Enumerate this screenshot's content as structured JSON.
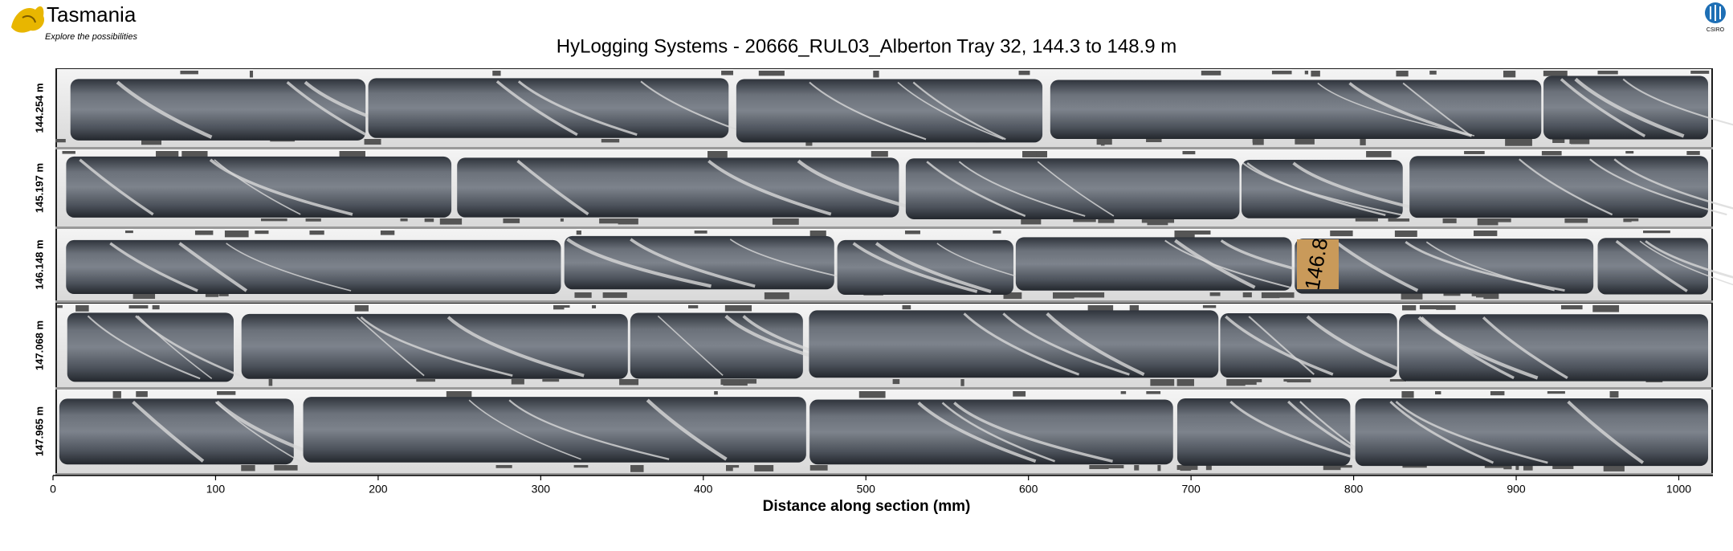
{
  "logo": {
    "name": "Tasmania",
    "tagline": "Explore the possibilities"
  },
  "corner_logo": "CSIRO",
  "title": "HyLogging Systems  -  20666_RUL03_Alberton  Tray 32,  144.3 to 148.9 m",
  "rows": [
    {
      "label": "144.254 m"
    },
    {
      "label": "145.197 m"
    },
    {
      "label": "146.148 m"
    },
    {
      "label": "147.068 m"
    },
    {
      "label": "147.965 m"
    }
  ],
  "tag": "146.8",
  "x_axis": {
    "label": "Distance along section (mm)",
    "xlim": [
      0,
      1021
    ],
    "xticks": [
      0,
      100,
      200,
      300,
      400,
      500,
      600,
      700,
      800,
      900,
      1000
    ]
  }
}
